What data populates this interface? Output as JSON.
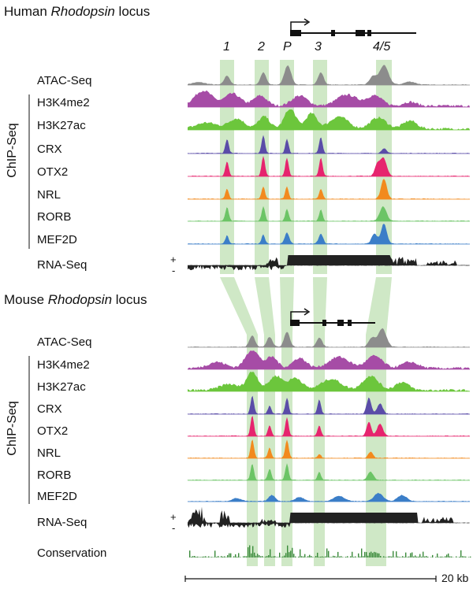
{
  "human": {
    "title_prefix": "Human ",
    "title_gene": "Rhodopsin",
    "title_suffix": " locus",
    "regions": [
      "1",
      "2",
      "P",
      "3",
      "4/5"
    ],
    "group_label": "ChIP-Seq",
    "tracks": [
      {
        "label": "ATAC-Seq",
        "color": "#8c8c8c"
      },
      {
        "label": "H3K4me2",
        "color": "#a64ca6"
      },
      {
        "label": "H3K27ac",
        "color": "#6cc63c"
      },
      {
        "label": "CRX",
        "color": "#5a4ca8"
      },
      {
        "label": "OTX2",
        "color": "#e6246e"
      },
      {
        "label": "NRL",
        "color": "#f28a1e"
      },
      {
        "label": "RORB",
        "color": "#6cc466"
      },
      {
        "label": "MEF2D",
        "color": "#3b7ec8"
      }
    ],
    "rna_label": "RNA-Seq",
    "plus": "+",
    "minus": "-"
  },
  "mouse": {
    "title_prefix": "Mouse ",
    "title_gene": "Rhodopsin",
    "title_suffix": " locus",
    "group_label": "ChIP-Seq",
    "tracks": [
      {
        "label": "ATAC-Seq",
        "color": "#8c8c8c"
      },
      {
        "label": "H3K4me2",
        "color": "#a64ca6"
      },
      {
        "label": "H3K27ac",
        "color": "#6cc63c"
      },
      {
        "label": "CRX",
        "color": "#5a4ca8"
      },
      {
        "label": "OTX2",
        "color": "#e6246e"
      },
      {
        "label": "NRL",
        "color": "#f28a1e"
      },
      {
        "label": "RORB",
        "color": "#6cc466"
      },
      {
        "label": "MEF2D",
        "color": "#3b7ec8"
      }
    ],
    "rna_label": "RNA-Seq",
    "plus": "+",
    "minus": "-",
    "conservation_label": "Conservation",
    "conservation_color": "#3a8a3a"
  },
  "scale_bar": {
    "label": "20 kb"
  },
  "colors": {
    "highlight": "#cfe8c6",
    "rna": "#222222"
  }
}
